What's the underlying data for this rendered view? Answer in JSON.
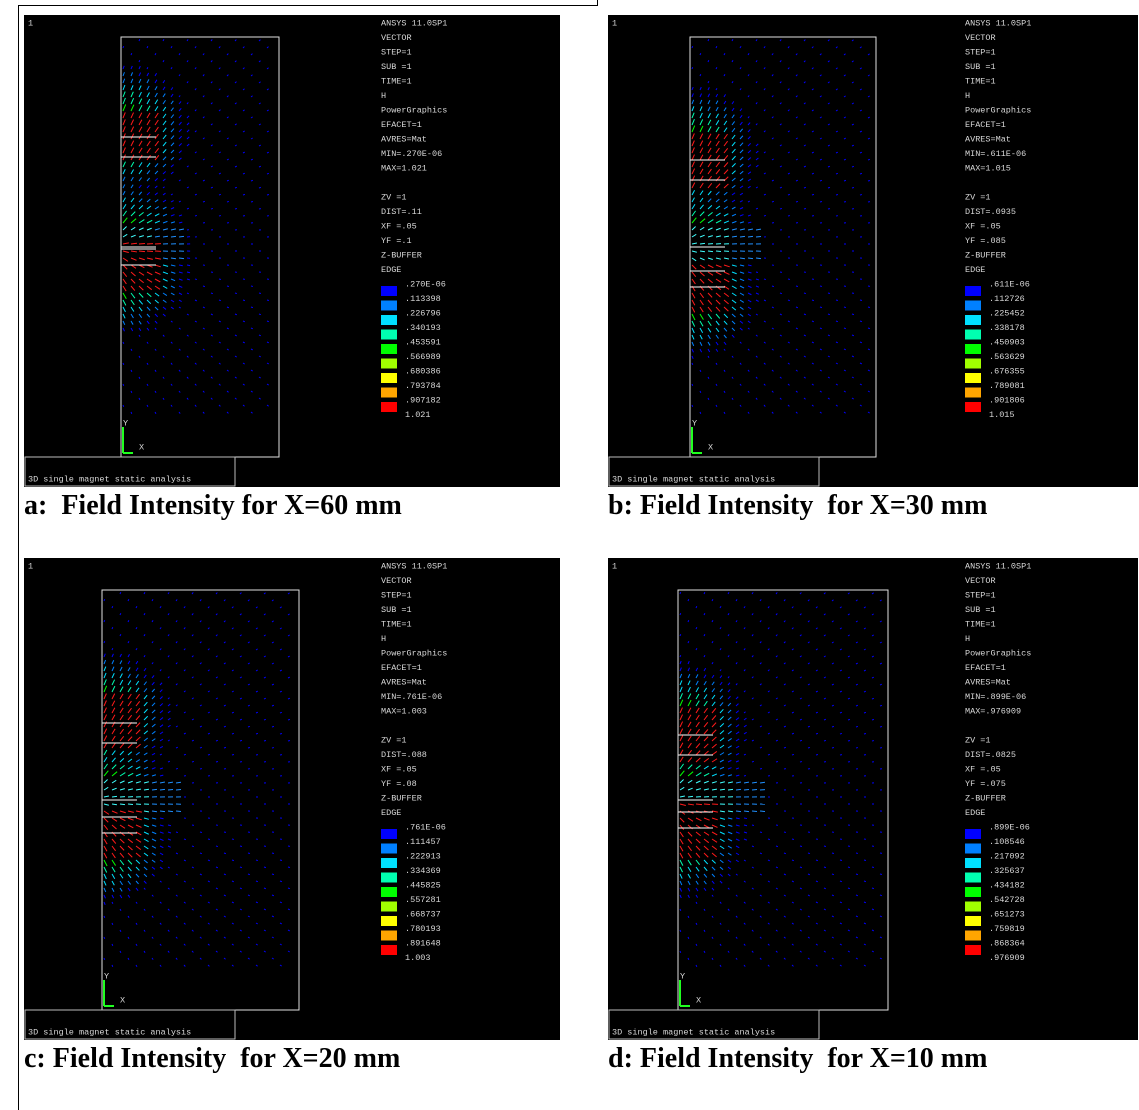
{
  "panels": [
    {
      "number": "1",
      "header": [
        "ANSYS 11.0SP1",
        "VECTOR",
        "STEP=1",
        "SUB =1",
        "TIME=1",
        "H",
        "PowerGraphics",
        "EFACET=1",
        "AVRES=Mat",
        "MIN=.270E-06",
        "MAX=1.021"
      ],
      "view": [
        "ZV =1",
        "DIST=.11",
        "XF =.05",
        "YF =.1",
        "Z-BUFFER",
        "EDGE"
      ],
      "legend": [
        ".270E-06",
        ".113398",
        ".226796",
        ".340193",
        ".453591",
        ".566989",
        ".680386",
        ".793784",
        ".907182",
        "1.021"
      ],
      "axis_y": "Y",
      "axis_x": "X",
      "footer": "3D single magnet static analysis",
      "caption": "a:  Field Intensity for X=60 mm"
    },
    {
      "number": "1",
      "header": [
        "ANSYS 11.0SP1",
        "VECTOR",
        "STEP=1",
        "SUB =1",
        "TIME=1",
        "H",
        "PowerGraphics",
        "EFACET=1",
        "AVRES=Mat",
        "MIN=.611E-06",
        "MAX=1.015"
      ],
      "view": [
        "ZV =1",
        "DIST=.0935",
        "XF =.05",
        "YF =.085",
        "Z-BUFFER",
        "EDGE"
      ],
      "legend": [
        ".611E-06",
        ".112726",
        ".225452",
        ".338178",
        ".450903",
        ".563629",
        ".676355",
        ".789081",
        ".901806",
        "1.015"
      ],
      "axis_y": "Y",
      "axis_x": "X",
      "footer": "3D single magnet static analysis",
      "caption": "b: Field Intensity  for X=30 mm"
    },
    {
      "number": "1",
      "header": [
        "ANSYS 11.0SP1",
        "VECTOR",
        "STEP=1",
        "SUB =1",
        "TIME=1",
        "H",
        "PowerGraphics",
        "EFACET=1",
        "AVRES=Mat",
        "MIN=.761E-06",
        "MAX=1.003"
      ],
      "view": [
        "ZV =1",
        "DIST=.088",
        "XF =.05",
        "YF =.08",
        "Z-BUFFER",
        "EDGE"
      ],
      "legend": [
        ".761E-06",
        ".111457",
        ".222913",
        ".334369",
        ".445825",
        ".557281",
        ".668737",
        ".780193",
        ".891648",
        "1.003"
      ],
      "axis_y": "Y",
      "axis_x": "X",
      "footer": "3D single magnet static analysis",
      "caption": "c: Field Intensity  for X=20 mm"
    },
    {
      "number": "1",
      "header": [
        "ANSYS 11.0SP1",
        "VECTOR",
        "STEP=1",
        "SUB =1",
        "TIME=1",
        "H",
        "PowerGraphics",
        "EFACET=1",
        "AVRES=Mat",
        "MIN=.899E-06",
        "MAX=.976909"
      ],
      "view": [
        "ZV =1",
        "DIST=.0825",
        "XF =.05",
        "YF =.075",
        "Z-BUFFER",
        "EDGE"
      ],
      "legend": [
        ".899E-06",
        ".108546",
        ".217092",
        ".325637",
        ".434182",
        ".542728",
        ".651273",
        ".759819",
        ".868364",
        ".976909"
      ],
      "axis_y": "Y",
      "axis_x": "X",
      "footer": "3D single magnet static analysis",
      "caption": "d: Field Intensity  for X=10 mm"
    }
  ]
}
